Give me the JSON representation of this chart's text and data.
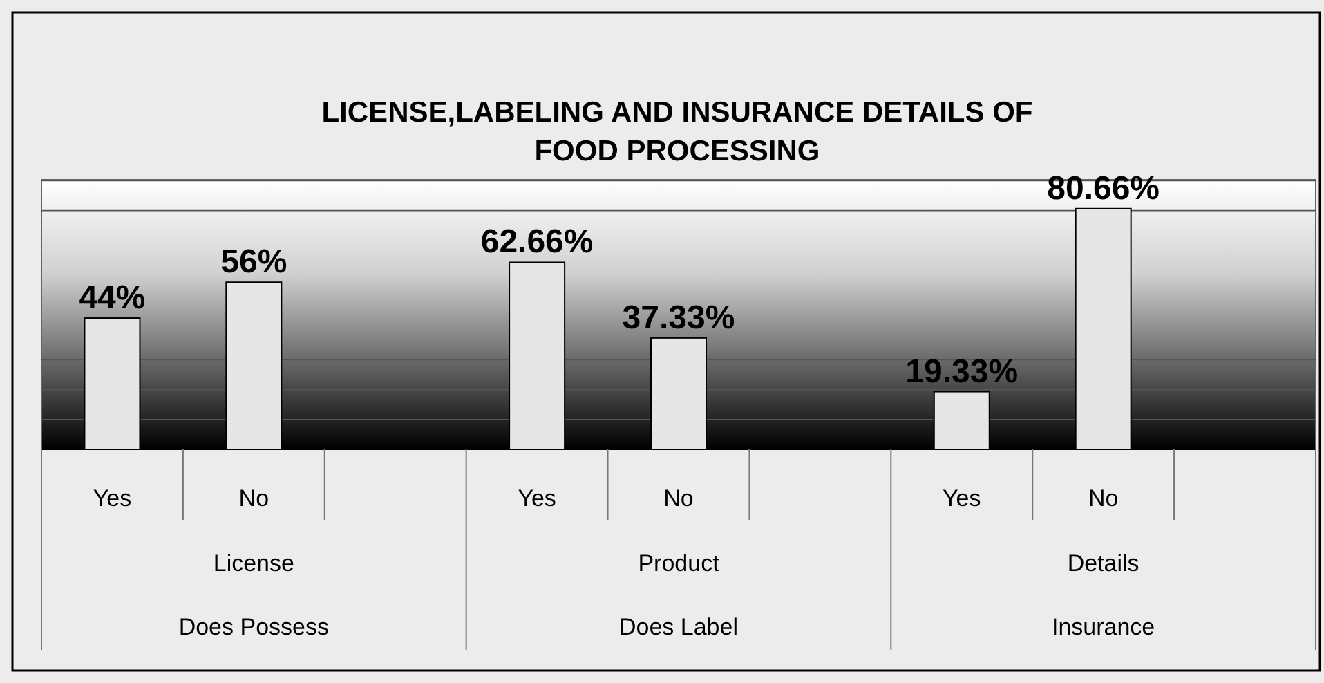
{
  "chart_data": {
    "type": "bar",
    "title": "LICENSE,LABELING AND INSURANCE DETAILS OF FOOD PROCESSING",
    "categories": [
      "Yes",
      "No",
      null,
      "Yes",
      "No",
      null,
      "Yes",
      "No",
      null
    ],
    "values": [
      44,
      56,
      null,
      62.66,
      37.33,
      null,
      19.33,
      80.66,
      null
    ],
    "value_labels": [
      "44%",
      "56%",
      null,
      "62.66%",
      "37.33%",
      null,
      "19.33%",
      "80.66%",
      null
    ],
    "color": "#e6e6e6",
    "annotations": [
      "License",
      "Does Possess",
      "Product",
      "Does Label",
      "Details",
      "Insurance"
    ],
    "grid": "y"
  }
}
